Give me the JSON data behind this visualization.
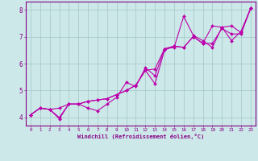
{
  "background_color": "#cce8e8",
  "grid_color": "#aacccc",
  "line_color": "#bb00aa",
  "marker_color": "#bb00aa",
  "xlabel": "Windchill (Refroidissement éolien,°C)",
  "xlabel_color": "#880088",
  "tick_color": "#880088",
  "spine_color": "#880088",
  "xlim": [
    -0.5,
    23.5
  ],
  "ylim": [
    3.7,
    8.3
  ],
  "yticks": [
    4,
    5,
    6,
    7,
    8
  ],
  "xticks": [
    0,
    1,
    2,
    3,
    4,
    5,
    6,
    7,
    8,
    9,
    10,
    11,
    12,
    13,
    14,
    15,
    16,
    17,
    18,
    19,
    20,
    21,
    22,
    23
  ],
  "series": [
    [
      4.1,
      4.35,
      4.3,
      3.95,
      4.5,
      4.5,
      4.35,
      4.25,
      4.5,
      4.75,
      5.3,
      5.15,
      5.85,
      5.55,
      6.55,
      6.6,
      7.75,
      7.05,
      6.85,
      6.6,
      7.35,
      6.85,
      7.2,
      8.05
    ],
    [
      4.1,
      4.35,
      4.3,
      4.0,
      4.5,
      4.5,
      4.6,
      4.65,
      4.7,
      4.85,
      5.0,
      5.2,
      5.75,
      5.25,
      6.5,
      6.65,
      6.6,
      7.0,
      6.75,
      6.75,
      7.3,
      7.1,
      7.1,
      8.05
    ],
    [
      4.1,
      4.35,
      4.3,
      4.35,
      4.5,
      4.5,
      4.6,
      4.65,
      4.7,
      4.85,
      5.0,
      5.2,
      5.75,
      5.8,
      6.55,
      6.65,
      6.6,
      7.0,
      6.75,
      7.4,
      7.35,
      7.4,
      7.15,
      8.05
    ]
  ]
}
